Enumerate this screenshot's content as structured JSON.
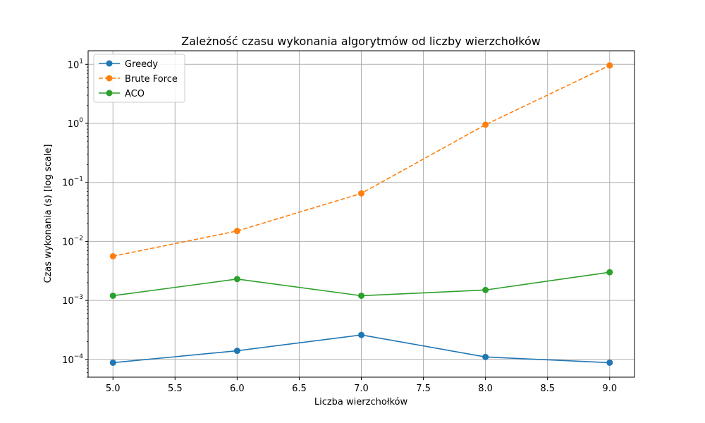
{
  "chart_data": {
    "type": "line",
    "title": "Zależność czasu wykonania algorytmów od liczby wierzchołków",
    "xlabel": "Liczba wierzchołków",
    "ylabel": "Czas wykonania (s) [log scale]",
    "x": [
      5,
      6,
      7,
      8,
      9
    ],
    "xlim": [
      4.8,
      9.2
    ],
    "xticks": [
      5.0,
      5.5,
      6.0,
      6.5,
      7.0,
      7.5,
      8.0,
      8.5,
      9.0
    ],
    "xtick_labels": [
      "5.0",
      "5.5",
      "6.0",
      "6.5",
      "7.0",
      "7.5",
      "8.0",
      "8.5",
      "9.0"
    ],
    "yscale": "log",
    "ylim": [
      5e-05,
      17
    ],
    "yticks": [
      {
        "value": 0.0001,
        "base": "10",
        "exp": "−4"
      },
      {
        "value": 0.001,
        "base": "10",
        "exp": "−3"
      },
      {
        "value": 0.01,
        "base": "10",
        "exp": "−2"
      },
      {
        "value": 0.1,
        "base": "10",
        "exp": "−1"
      },
      {
        "value": 1,
        "base": "10",
        "exp": "0"
      },
      {
        "value": 10,
        "base": "10",
        "exp": "1"
      }
    ],
    "grid": true,
    "legend_position": "top-left",
    "series": [
      {
        "name": "Greedy",
        "values": [
          8.8e-05,
          0.00014,
          0.00026,
          0.00011,
          8.8e-05
        ],
        "color": "#1f77b4",
        "linestyle": "solid",
        "marker": "circle"
      },
      {
        "name": "Brute Force",
        "values": [
          0.0056,
          0.015,
          0.065,
          0.95,
          9.6
        ],
        "color": "#ff7f0e",
        "linestyle": "dashed",
        "marker": "circle"
      },
      {
        "name": "ACO",
        "values": [
          0.0012,
          0.0023,
          0.0012,
          0.0015,
          0.003
        ],
        "color": "#2ca02c",
        "linestyle": "solid",
        "marker": "circle"
      }
    ]
  }
}
